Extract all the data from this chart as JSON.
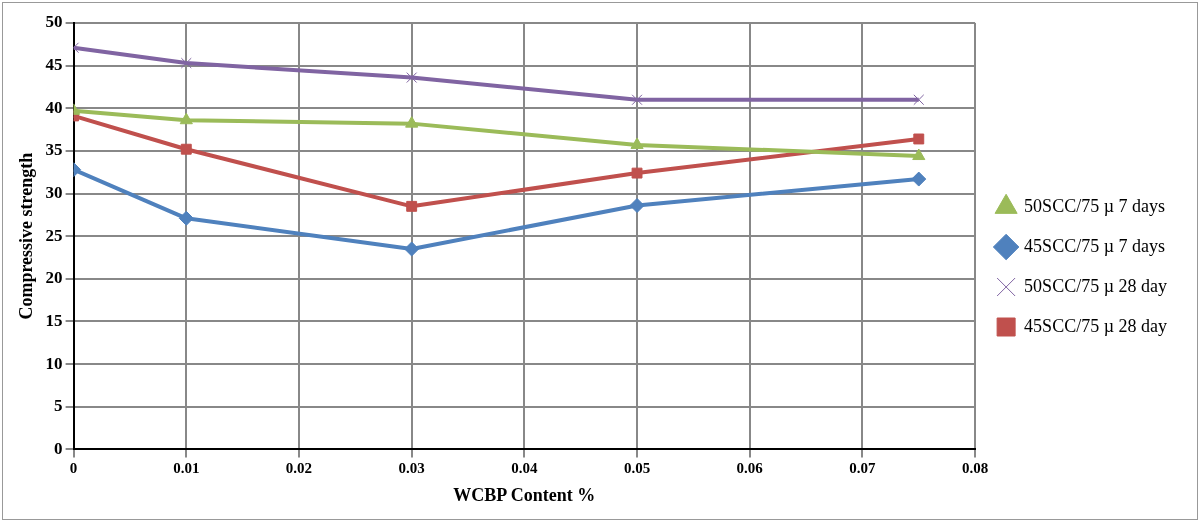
{
  "chart_data": {
    "type": "line",
    "xlabel": "WCBP Content %",
    "ylabel": "Compressive strength",
    "x": [
      0,
      0.01,
      0.03,
      0.05,
      0.075
    ],
    "series": [
      {
        "name": "50SCC/75 µ 7 days",
        "color": "#9bbb59",
        "marker": "triangle",
        "values": [
          39.7,
          38.6,
          38.2,
          35.7,
          34.4
        ]
      },
      {
        "name": "45SCC/75 µ 7 days",
        "color": "#4f81bd",
        "marker": "diamond",
        "values": [
          32.8,
          27.1,
          23.5,
          28.6,
          31.7
        ]
      },
      {
        "name": "50SCC/75 µ 28 day",
        "color": "#8064a2",
        "marker": "cross",
        "values": [
          47.1,
          45.3,
          43.6,
          41.0,
          41.0
        ]
      },
      {
        "name": "45SCC/75 µ 28 day",
        "color": "#c0504d",
        "marker": "square",
        "values": [
          39.1,
          35.2,
          28.5,
          32.4,
          36.4
        ]
      }
    ],
    "xlim": [
      0,
      0.08
    ],
    "xticks": [
      0,
      0.01,
      0.02,
      0.03,
      0.04,
      0.05,
      0.06,
      0.07,
      0.08
    ],
    "ylim": [
      0,
      50
    ],
    "yticks": [
      0,
      5,
      10,
      15,
      20,
      25,
      30,
      35,
      40,
      45,
      50
    ],
    "grid": true,
    "legend": "right",
    "line_style": "solid"
  }
}
